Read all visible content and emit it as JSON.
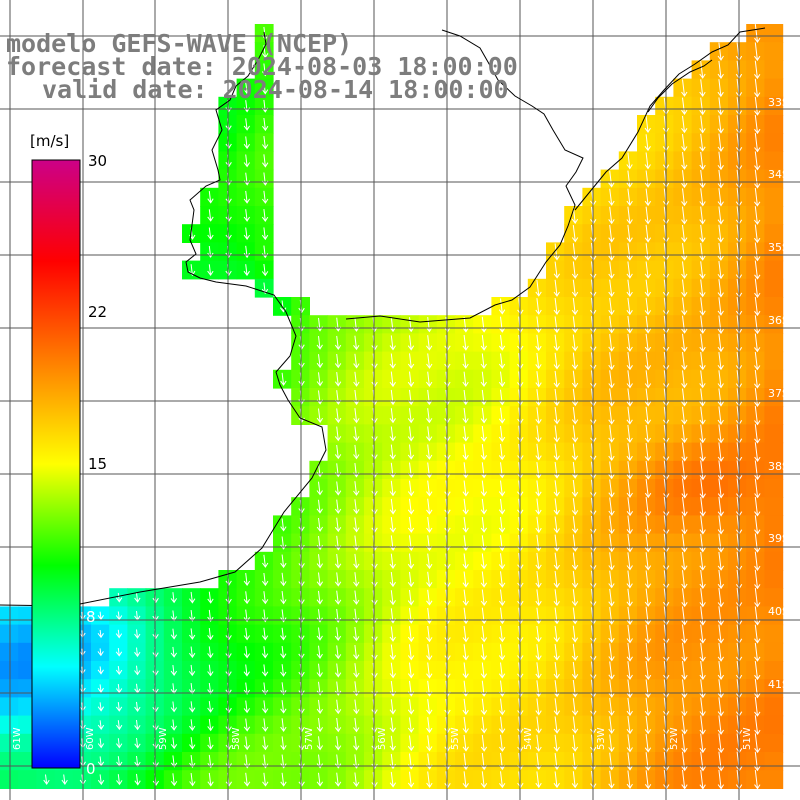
{
  "header": {
    "title": "modelo GEFS-WAVE (NCEP)",
    "forecast": "forecast date: 2024-08-03 18:00:00",
    "valid": "valid date: 2024-08-14 18:00:00"
  },
  "colorbar": {
    "unit": "[m/s]",
    "ticks": [
      "30",
      "22",
      "15",
      "8",
      "0"
    ],
    "stops": [
      "#0000ff",
      "#00ffff",
      "#00ff00",
      "#ffff00",
      "#ff8000",
      "#ff0000",
      "#cc0088"
    ]
  },
  "lat_labels": [
    "33S",
    "34S",
    "35S",
    "36S",
    "37S",
    "38S",
    "39S",
    "40S",
    "41S"
  ],
  "lon_labels": [
    "61W",
    "60W",
    "59W",
    "58W",
    "57W",
    "56W",
    "55W",
    "54W",
    "53W",
    "52W",
    "51W"
  ],
  "colors": {
    "land": "#ffffff",
    "grid": "#555555",
    "coast": "#000000",
    "arrow": "#ffffff"
  }
}
